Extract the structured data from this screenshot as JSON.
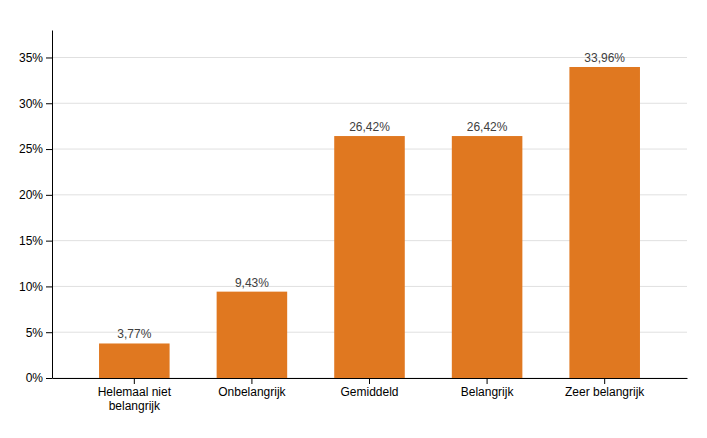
{
  "chart_data": {
    "type": "bar",
    "categories": [
      "Helemaal niet\nbelangrijk",
      "Onbelangrijk",
      "Gemiddeld",
      "Belangrijk",
      "Zeer belangrijk"
    ],
    "values": [
      3.77,
      9.43,
      26.42,
      26.42,
      33.96
    ],
    "value_labels": [
      "3,77%",
      "9,43%",
      "26,42%",
      "26,42%",
      "33,96%"
    ],
    "color": "#E07820",
    "ylim": [
      0,
      38
    ],
    "yticks": [
      {
        "value": 0,
        "label": "0%"
      },
      {
        "value": 5,
        "label": "5%"
      },
      {
        "value": 10,
        "label": "10%"
      },
      {
        "value": 15,
        "label": "15%"
      },
      {
        "value": 20,
        "label": "20%"
      },
      {
        "value": 25,
        "label": "25%"
      },
      {
        "value": 30,
        "label": "30%"
      },
      {
        "value": 35,
        "label": "35%"
      }
    ],
    "grid": true
  }
}
